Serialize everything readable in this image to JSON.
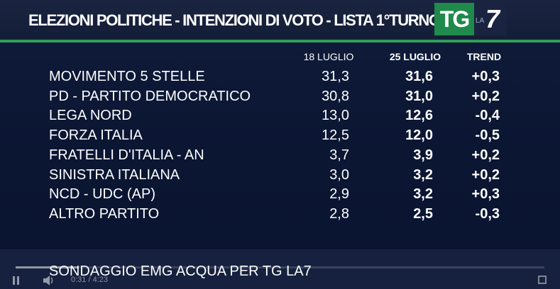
{
  "header": {
    "title": "ELEZIONI POLITICHE - INTENZIONI DI VOTO - LISTA 1°TURNO",
    "logo": {
      "tg": "TG",
      "la": "LA",
      "seven": "7"
    }
  },
  "table": {
    "columns": [
      "18 LUGLIO",
      "25 LUGLIO",
      "TREND"
    ],
    "rows": [
      {
        "party": "MOVIMENTO 5 STELLE",
        "jul18": "31,3",
        "jul25": "31,6",
        "trend": "+0,3"
      },
      {
        "party": "PD - PARTITO DEMOCRATICO",
        "jul18": "30,8",
        "jul25": "31,0",
        "trend": "+0,2"
      },
      {
        "party": "LEGA NORD",
        "jul18": "13,0",
        "jul25": "12,6",
        "trend": "-0,4"
      },
      {
        "party": "FORZA ITALIA",
        "jul18": "12,5",
        "jul25": "12,0",
        "trend": "-0,5"
      },
      {
        "party": "FRATELLI D'ITALIA - AN",
        "jul18": "3,7",
        "jul25": "3,9",
        "trend": "+0,2"
      },
      {
        "party": "SINISTRA ITALIANA",
        "jul18": "3,0",
        "jul25": "3,2",
        "trend": "+0,2"
      },
      {
        "party": "NCD - UDC (AP)",
        "jul18": "2,9",
        "jul25": "3,2",
        "trend": "+0,3"
      },
      {
        "party": "ALTRO PARTITO",
        "jul18": "2,8",
        "jul25": "2,5",
        "trend": "-0,3"
      }
    ]
  },
  "footer": {
    "source": "SONDAGGIO EMG ACQUA PER TG LA7"
  },
  "player": {
    "time": "0:31 / 4:23",
    "progress": 0.12,
    "icons": [
      "pause-icon",
      "volume-icon",
      "fullscreen-icon"
    ]
  },
  "colors": {
    "background": "#0d1830",
    "accent_green": "#2f9e57",
    "text": "#ffffff"
  }
}
